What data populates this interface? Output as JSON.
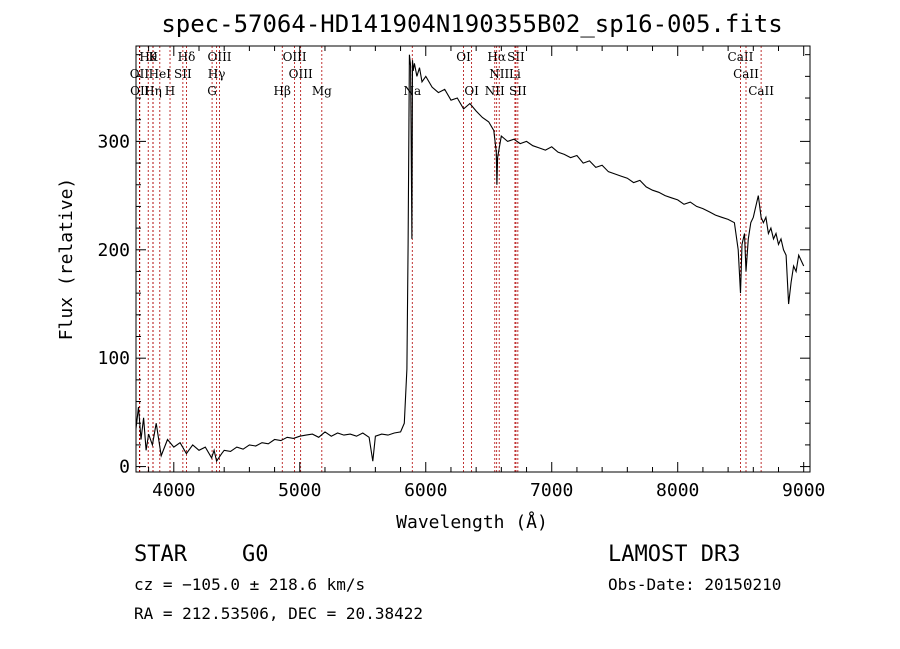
{
  "chart_data": {
    "type": "line",
    "title": "spec-57064-HD141904N190355B02_sp16-005.fits",
    "xlabel": "Wavelength (Å)",
    "ylabel": "Flux (relative)",
    "xlim": [
      3700,
      9050
    ],
    "ylim": [
      -5,
      388
    ],
    "x_ticks": [
      4000,
      5000,
      6000,
      7000,
      8000,
      9000
    ],
    "y_ticks": [
      0,
      100,
      200,
      300
    ],
    "grid": false,
    "series": [
      {
        "x": [
          3700,
          3720,
          3740,
          3760,
          3780,
          3800,
          3830,
          3860,
          3900,
          3950,
          4000,
          4050,
          4100,
          4150,
          4200,
          4250,
          4300,
          4320,
          4340,
          4380,
          4400,
          4450,
          4500,
          4550,
          4600,
          4650,
          4700,
          4750,
          4800,
          4850,
          4900,
          4950,
          5000,
          5050,
          5100,
          5150,
          5200,
          5250,
          5300,
          5350,
          5400,
          5450,
          5500,
          5550,
          5580,
          5600,
          5650,
          5700,
          5750,
          5800,
          5830,
          5850,
          5860,
          5870,
          5880,
          5890,
          5895,
          5900,
          5910,
          5930,
          5950,
          5970,
          6000,
          6050,
          6100,
          6150,
          6200,
          6250,
          6300,
          6350,
          6400,
          6450,
          6500,
          6540,
          6560,
          6565,
          6570,
          6600,
          6650,
          6700,
          6750,
          6800,
          6850,
          6900,
          6950,
          7000,
          7050,
          7100,
          7150,
          7200,
          7250,
          7300,
          7350,
          7400,
          7450,
          7500,
          7550,
          7600,
          7650,
          7700,
          7750,
          7800,
          7850,
          7900,
          7950,
          8000,
          8050,
          8100,
          8150,
          8200,
          8250,
          8300,
          8350,
          8400,
          8450,
          8480,
          8498,
          8510,
          8530,
          8542,
          8560,
          8580,
          8600,
          8620,
          8640,
          8662,
          8680,
          8700,
          8720,
          8740,
          8760,
          8780,
          8800,
          8820,
          8840,
          8860,
          8880,
          8900,
          8920,
          8940,
          8960,
          8980,
          9000
        ],
        "y": [
          35,
          55,
          25,
          45,
          15,
          30,
          20,
          40,
          10,
          25,
          18,
          22,
          12,
          20,
          15,
          18,
          8,
          15,
          5,
          12,
          15,
          14,
          18,
          16,
          20,
          19,
          22,
          21,
          25,
          24,
          27,
          26,
          28,
          29,
          30,
          27,
          32,
          28,
          31,
          29,
          30,
          28,
          31,
          27,
          5,
          28,
          30,
          29,
          31,
          32,
          40,
          90,
          205,
          380,
          370,
          210,
          375,
          365,
          372,
          360,
          368,
          355,
          360,
          350,
          345,
          348,
          338,
          340,
          330,
          335,
          328,
          322,
          318,
          310,
          290,
          260,
          285,
          305,
          300,
          302,
          298,
          300,
          296,
          294,
          292,
          295,
          290,
          288,
          285,
          287,
          280,
          282,
          276,
          278,
          272,
          270,
          268,
          266,
          262,
          264,
          258,
          255,
          253,
          250,
          248,
          246,
          242,
          244,
          240,
          238,
          235,
          232,
          230,
          228,
          225,
          200,
          160,
          205,
          215,
          180,
          210,
          225,
          230,
          240,
          250,
          230,
          225,
          230,
          215,
          220,
          210,
          215,
          205,
          210,
          200,
          195,
          150,
          170,
          185,
          180,
          195,
          190,
          185
        ]
      }
    ],
    "line_marks": [
      {
        "wl": 3797,
        "label": "Hθ",
        "row": 1
      },
      {
        "wl": 3835,
        "label": "K",
        "row": 1
      },
      {
        "wl": 4101,
        "label": "Hδ",
        "row": 1
      },
      {
        "wl": 4363,
        "label": "OIII",
        "row": 1
      },
      {
        "wl": 4959,
        "label": "OIII",
        "row": 1
      },
      {
        "wl": 6300,
        "label": "OI",
        "row": 1
      },
      {
        "wl": 6563,
        "label": "Hα",
        "row": 1
      },
      {
        "wl": 6716,
        "label": "SII",
        "row": 1
      },
      {
        "wl": 8498,
        "label": "CaII",
        "row": 1
      },
      {
        "wl": 3727,
        "label": "OII",
        "row": 2
      },
      {
        "wl": 3889,
        "label": "HeI",
        "row": 2
      },
      {
        "wl": 4072,
        "label": "SII",
        "row": 2
      },
      {
        "wl": 4340,
        "label": "Hγ",
        "row": 2
      },
      {
        "wl": 5007,
        "label": "OIII",
        "row": 2
      },
      {
        "wl": 6583,
        "label": "NII",
        "row": 2
      },
      {
        "wl": 6708,
        "label": "Li",
        "row": 2
      },
      {
        "wl": 8542,
        "label": "CaII",
        "row": 2
      },
      {
        "wl": 3730,
        "label": "OII",
        "row": 3
      },
      {
        "wl": 3835,
        "label": "Hη",
        "row": 3
      },
      {
        "wl": 3970,
        "label": "H",
        "row": 3
      },
      {
        "wl": 4304,
        "label": "G",
        "row": 3
      },
      {
        "wl": 4861,
        "label": "Hβ",
        "row": 3
      },
      {
        "wl": 5175,
        "label": "Mg",
        "row": 3
      },
      {
        "wl": 5893,
        "label": "Na",
        "row": 3
      },
      {
        "wl": 6364,
        "label": "OI",
        "row": 3
      },
      {
        "wl": 6548,
        "label": "NII",
        "row": 3
      },
      {
        "wl": 6731,
        "label": "SII",
        "row": 3
      },
      {
        "wl": 8662,
        "label": "CaII",
        "row": 3
      }
    ],
    "colors": {
      "spectrum": "#000000",
      "line_marks": "#b00000",
      "axes": "#000000"
    }
  },
  "info": {
    "object_class": "STAR",
    "subclass": "G0",
    "survey": "LAMOST DR3",
    "cz": "cz = −105.0 ± 218.6 km/s",
    "obs_date": "Obs-Date: 20150210",
    "coords": "RA = 212.53506, DEC =  20.38422"
  }
}
